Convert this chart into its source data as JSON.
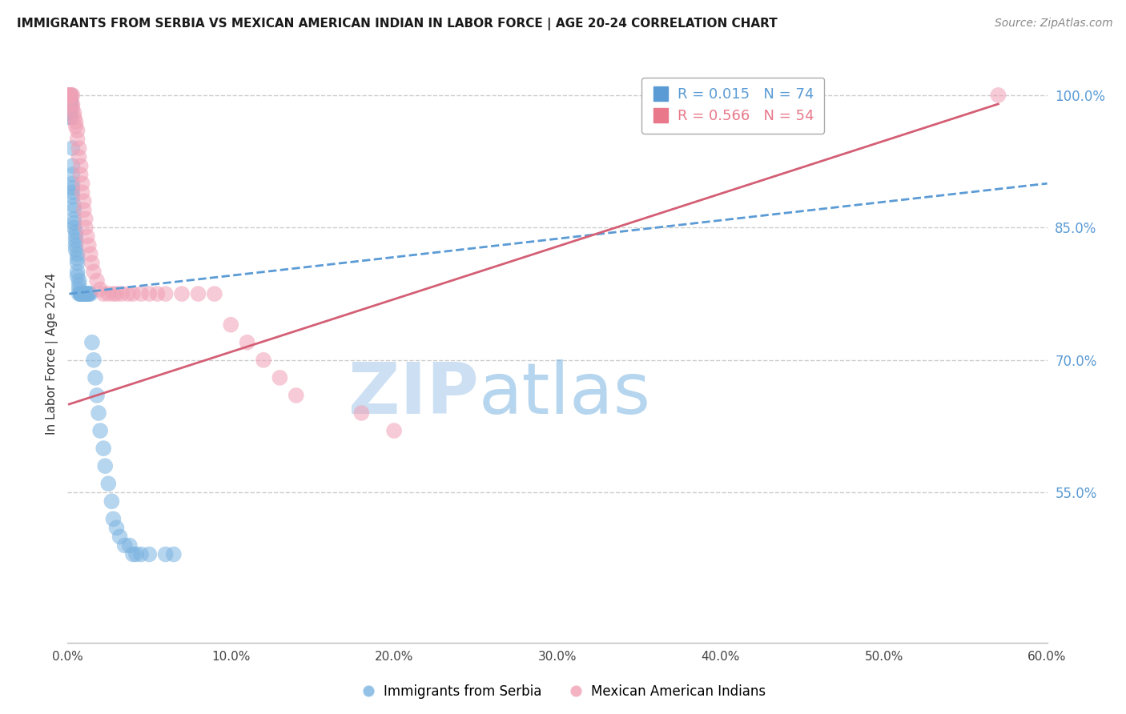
{
  "title": "IMMIGRANTS FROM SERBIA VS MEXICAN AMERICAN INDIAN IN LABOR FORCE | AGE 20-24 CORRELATION CHART",
  "source_text": "Source: ZipAtlas.com",
  "ylabel": "In Labor Force | Age 20-24",
  "xlim": [
    0.0,
    0.6
  ],
  "ylim": [
    0.38,
    1.035
  ],
  "right_yticks": [
    0.55,
    0.7,
    0.85,
    1.0
  ],
  "right_yticklabels": [
    "55.0%",
    "70.0%",
    "85.0%",
    "100.0%"
  ],
  "grid_yticks": [
    0.55,
    0.7,
    0.85,
    1.0
  ],
  "xticks": [
    0.0,
    0.1,
    0.2,
    0.3,
    0.4,
    0.5,
    0.6
  ],
  "xticklabels": [
    "0.0%",
    "10.0%",
    "20.0%",
    "30.0%",
    "40.0%",
    "50.0%",
    "60.0%"
  ],
  "watermark_part1": "ZIP",
  "watermark_part2": "atlas",
  "legend_R_N": [
    {
      "R": "0.015",
      "N": "74",
      "color": "#5b9bd5"
    },
    {
      "R": "0.566",
      "N": "54",
      "color": "#e8788a"
    }
  ],
  "serbia_color": "#7ab3e0",
  "mexican_color": "#f0a0b5",
  "serbia_trendline_color": "#5b9bd5",
  "mexican_trendline_color": "#d45f75",
  "grid_color": "#cccccc",
  "serbia_x": [
    0.001,
    0.001,
    0.001,
    0.001,
    0.002,
    0.002,
    0.002,
    0.002,
    0.002,
    0.002,
    0.003,
    0.003,
    0.003,
    0.003,
    0.003,
    0.003,
    0.003,
    0.004,
    0.004,
    0.004,
    0.004,
    0.004,
    0.005,
    0.005,
    0.005,
    0.005,
    0.005,
    0.006,
    0.006,
    0.006,
    0.006,
    0.006,
    0.007,
    0.007,
    0.007,
    0.007,
    0.008,
    0.008,
    0.008,
    0.008,
    0.009,
    0.009,
    0.009,
    0.01,
    0.01,
    0.01,
    0.011,
    0.011,
    0.012,
    0.012,
    0.013,
    0.013,
    0.014,
    0.015,
    0.016,
    0.017,
    0.018,
    0.019,
    0.02,
    0.022,
    0.023,
    0.025,
    0.027,
    0.028,
    0.03,
    0.032,
    0.035,
    0.038,
    0.04,
    0.042,
    0.045,
    0.05,
    0.06,
    0.065
  ],
  "serbia_y": [
    1.0,
    0.99,
    0.98,
    0.975,
    1.0,
    0.995,
    0.99,
    0.985,
    0.98,
    0.975,
    0.94,
    0.92,
    0.91,
    0.9,
    0.895,
    0.89,
    0.885,
    0.875,
    0.87,
    0.86,
    0.855,
    0.85,
    0.845,
    0.84,
    0.835,
    0.83,
    0.825,
    0.82,
    0.815,
    0.81,
    0.8,
    0.795,
    0.79,
    0.785,
    0.78,
    0.775,
    0.775,
    0.775,
    0.775,
    0.775,
    0.775,
    0.775,
    0.775,
    0.775,
    0.775,
    0.775,
    0.775,
    0.775,
    0.775,
    0.775,
    0.775,
    0.775,
    0.775,
    0.72,
    0.7,
    0.68,
    0.66,
    0.64,
    0.62,
    0.6,
    0.58,
    0.56,
    0.54,
    0.52,
    0.51,
    0.5,
    0.49,
    0.49,
    0.48,
    0.48,
    0.48,
    0.48,
    0.48,
    0.48
  ],
  "mexican_x": [
    0.001,
    0.001,
    0.001,
    0.002,
    0.002,
    0.002,
    0.003,
    0.003,
    0.003,
    0.004,
    0.004,
    0.005,
    0.005,
    0.006,
    0.006,
    0.007,
    0.007,
    0.008,
    0.008,
    0.009,
    0.009,
    0.01,
    0.01,
    0.011,
    0.011,
    0.012,
    0.013,
    0.014,
    0.015,
    0.016,
    0.018,
    0.02,
    0.022,
    0.025,
    0.028,
    0.03,
    0.033,
    0.037,
    0.04,
    0.045,
    0.05,
    0.055,
    0.06,
    0.07,
    0.08,
    0.09,
    0.1,
    0.11,
    0.12,
    0.13,
    0.14,
    0.18,
    0.2,
    0.57
  ],
  "mexican_y": [
    1.0,
    1.0,
    1.0,
    1.0,
    1.0,
    0.99,
    1.0,
    0.99,
    0.985,
    0.98,
    0.975,
    0.97,
    0.965,
    0.96,
    0.95,
    0.94,
    0.93,
    0.92,
    0.91,
    0.9,
    0.89,
    0.88,
    0.87,
    0.86,
    0.85,
    0.84,
    0.83,
    0.82,
    0.81,
    0.8,
    0.79,
    0.78,
    0.775,
    0.775,
    0.775,
    0.775,
    0.775,
    0.775,
    0.775,
    0.775,
    0.775,
    0.775,
    0.775,
    0.775,
    0.775,
    0.775,
    0.74,
    0.72,
    0.7,
    0.68,
    0.66,
    0.64,
    0.62,
    1.0
  ],
  "serbia_trend_x": [
    0.001,
    0.6
  ],
  "serbia_trend_y": [
    0.775,
    0.9
  ],
  "mexican_trend_x": [
    0.001,
    0.57
  ],
  "mexican_trend_y": [
    0.65,
    0.99
  ]
}
